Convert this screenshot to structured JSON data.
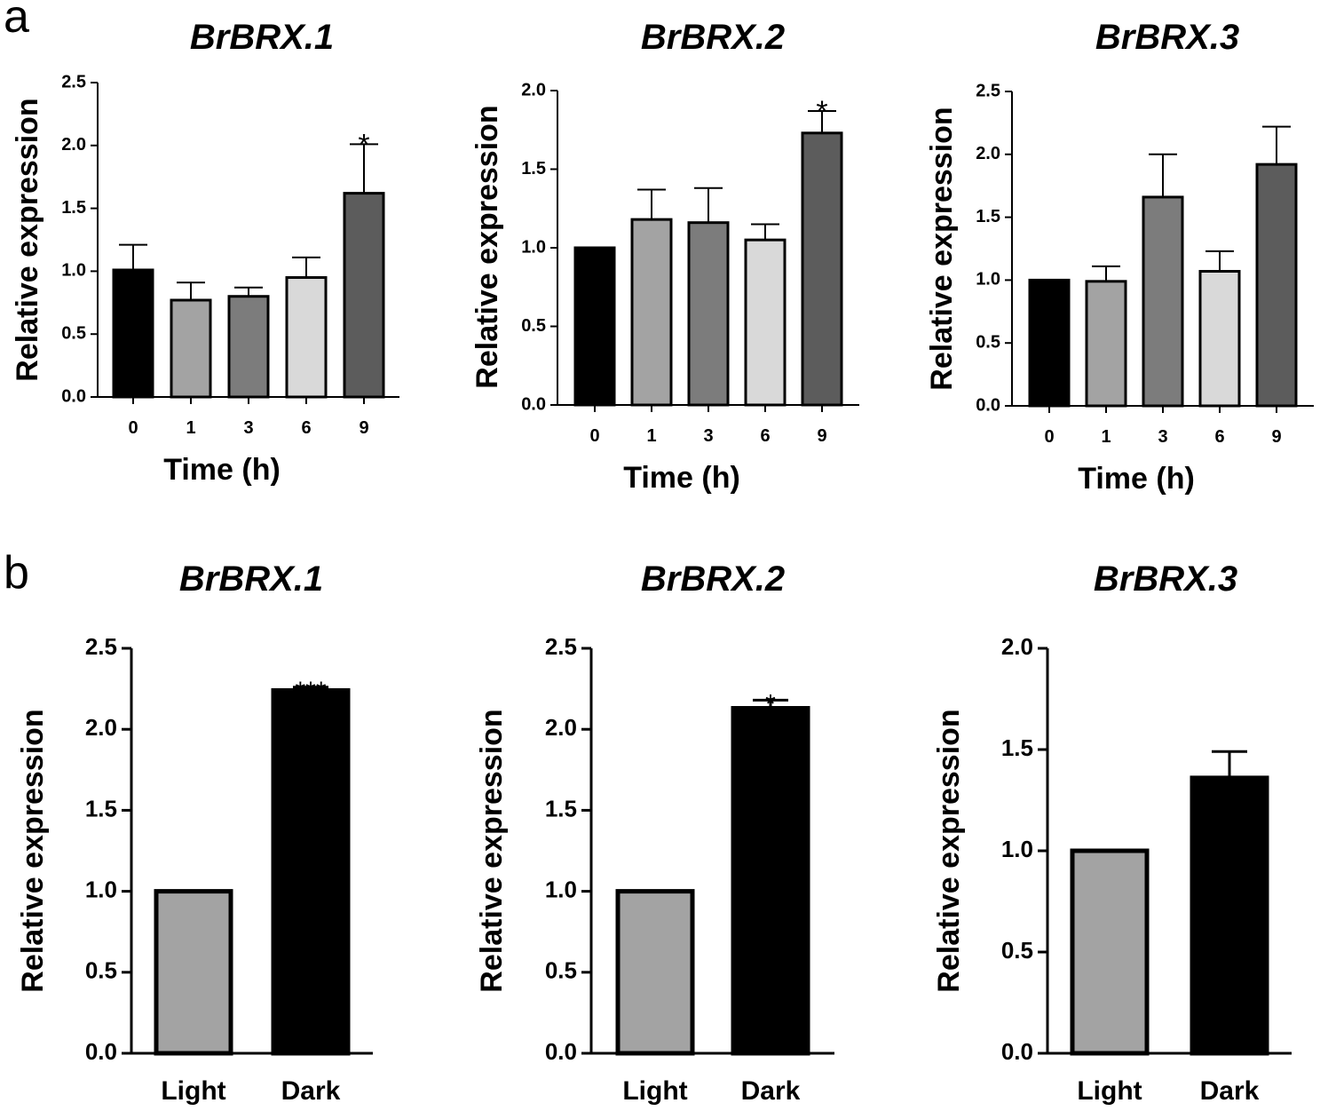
{
  "panel_labels": {
    "a": "a",
    "b": "b"
  },
  "colors": {
    "black": "#000000",
    "light_gray": "#a3a3a3",
    "mid_gray": "#7c7c7c",
    "pale_gray": "#d9d9d9",
    "dark_gray": "#5c5c5c"
  },
  "chart_data": [
    {
      "id": "a1",
      "type": "bar",
      "title": "BrBRX.1",
      "xlabel": "Time (h)",
      "ylabel": "Relative expression",
      "categories": [
        "0",
        "1",
        "3",
        "6",
        "9"
      ],
      "values": [
        1.01,
        0.77,
        0.8,
        0.95,
        1.62
      ],
      "errors": [
        0.2,
        0.14,
        0.07,
        0.16,
        0.39
      ],
      "significance": [
        "",
        "",
        "",
        "",
        "*"
      ],
      "ylim": [
        0,
        2.5
      ],
      "yticks": [
        "0.0",
        "0.5",
        "1.0",
        "1.5",
        "2.0",
        "2.5"
      ],
      "colors": [
        "#000000",
        "#a3a3a3",
        "#7c7c7c",
        "#d9d9d9",
        "#5c5c5c"
      ]
    },
    {
      "id": "a2",
      "type": "bar",
      "title": "BrBRX.2",
      "xlabel": "Time (h)",
      "ylabel": "Relative expression",
      "categories": [
        "0",
        "1",
        "3",
        "6",
        "9"
      ],
      "values": [
        1.0,
        1.18,
        1.16,
        1.05,
        1.73
      ],
      "errors": [
        0.0,
        0.19,
        0.22,
        0.1,
        0.14
      ],
      "significance": [
        "",
        "",
        "",
        "",
        "*"
      ],
      "ylim": [
        0,
        2.0
      ],
      "yticks": [
        "0.0",
        "0.5",
        "1.0",
        "1.5",
        "2.0"
      ],
      "colors": [
        "#000000",
        "#a3a3a3",
        "#7c7c7c",
        "#d9d9d9",
        "#5c5c5c"
      ]
    },
    {
      "id": "a3",
      "type": "bar",
      "title": "BrBRX.3",
      "xlabel": "Time (h)",
      "ylabel": "Relative expression",
      "categories": [
        "0",
        "1",
        "3",
        "6",
        "9"
      ],
      "values": [
        1.0,
        0.99,
        1.66,
        1.07,
        1.92
      ],
      "errors": [
        0.0,
        0.12,
        0.34,
        0.16,
        0.3
      ],
      "significance": [
        "",
        "",
        "",
        "",
        ""
      ],
      "ylim": [
        0,
        2.5
      ],
      "yticks": [
        "0.0",
        "0.5",
        "1.0",
        "1.5",
        "2.0",
        "2.5"
      ],
      "colors": [
        "#000000",
        "#a3a3a3",
        "#7c7c7c",
        "#d9d9d9",
        "#5c5c5c"
      ]
    },
    {
      "id": "b1",
      "type": "bar",
      "title": "BrBRX.1",
      "xlabel": "",
      "ylabel": "Relative expression",
      "categories": [
        "Light",
        "Dark"
      ],
      "values": [
        1.0,
        2.24
      ],
      "errors": [
        0.0,
        0.02
      ],
      "significance": [
        "",
        "***"
      ],
      "ylim": [
        0,
        2.5
      ],
      "yticks": [
        "0.0",
        "0.5",
        "1.0",
        "1.5",
        "2.0",
        "2.5"
      ],
      "colors": [
        "#a3a3a3",
        "#000000"
      ]
    },
    {
      "id": "b2",
      "type": "bar",
      "title": "BrBRX.2",
      "xlabel": "",
      "ylabel": "Relative expression",
      "categories": [
        "Light",
        "Dark"
      ],
      "values": [
        1.0,
        2.13
      ],
      "errors": [
        0.0,
        0.05
      ],
      "significance": [
        "",
        "*"
      ],
      "ylim": [
        0,
        2.5
      ],
      "yticks": [
        "0.0",
        "0.5",
        "1.0",
        "1.5",
        "2.0",
        "2.5"
      ],
      "colors": [
        "#a3a3a3",
        "#000000"
      ]
    },
    {
      "id": "b3",
      "type": "bar",
      "title": "BrBRX.3",
      "xlabel": "",
      "ylabel": "Relative expression",
      "categories": [
        "Light",
        "Dark"
      ],
      "values": [
        1.0,
        1.36
      ],
      "errors": [
        0.0,
        0.13
      ],
      "significance": [
        "",
        ""
      ],
      "ylim": [
        0,
        2.0
      ],
      "yticks": [
        "0.0",
        "0.5",
        "1.0",
        "1.5",
        "2.0"
      ],
      "colors": [
        "#a3a3a3",
        "#000000"
      ]
    }
  ]
}
